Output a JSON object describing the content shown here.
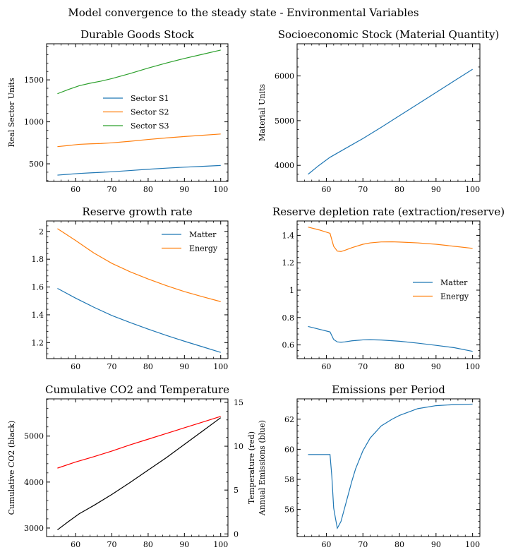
{
  "figure": {
    "title": "Model convergence to the steady state - Environmental Variables"
  },
  "chart_data": [
    {
      "type": "line",
      "title": "Durable Goods Stock",
      "xlabel": "",
      "ylabel": "Real Sector Units",
      "xlim": [
        52,
        102
      ],
      "ylim": [
        290,
        1930
      ],
      "xticks": [
        60,
        70,
        80,
        90,
        100
      ],
      "yticks": [
        500,
        1000,
        1500
      ],
      "grid": false,
      "legend": "center",
      "series": [
        {
          "name": "Sector S1",
          "color": "#1f77b4",
          "x": [
            55,
            58,
            61,
            64,
            67,
            70,
            75,
            80,
            85,
            90,
            95,
            100
          ],
          "y": [
            365,
            375,
            385,
            392,
            398,
            405,
            420,
            435,
            448,
            460,
            470,
            480
          ]
        },
        {
          "name": "Sector S2",
          "color": "#ff7f0e",
          "x": [
            55,
            58,
            61,
            64,
            67,
            70,
            75,
            80,
            85,
            90,
            95,
            100
          ],
          "y": [
            705,
            718,
            732,
            738,
            742,
            750,
            768,
            790,
            808,
            825,
            840,
            855
          ]
        },
        {
          "name": "Sector S3",
          "color": "#2ca02c",
          "x": [
            55,
            58,
            61,
            64,
            67,
            70,
            75,
            80,
            85,
            90,
            95,
            100
          ],
          "y": [
            1335,
            1385,
            1430,
            1460,
            1485,
            1515,
            1575,
            1640,
            1700,
            1755,
            1805,
            1855
          ]
        }
      ]
    },
    {
      "type": "line",
      "title": "Socioeconomic Stock (Material Quantity)",
      "xlabel": "",
      "ylabel": "Material Units",
      "xlim": [
        52,
        102
      ],
      "ylim": [
        3640,
        6720
      ],
      "xticks": [
        60,
        70,
        80,
        90,
        100
      ],
      "yticks": [
        4000,
        5000,
        6000
      ],
      "grid": false,
      "series": [
        {
          "name": "",
          "color": "#1f77b4",
          "x": [
            55,
            58,
            61,
            64,
            67,
            70,
            75,
            80,
            85,
            90,
            95,
            100
          ],
          "y": [
            3800,
            4000,
            4180,
            4320,
            4460,
            4600,
            4850,
            5110,
            5370,
            5630,
            5890,
            6150
          ]
        }
      ]
    },
    {
      "type": "line",
      "title": "Reserve growth rate",
      "xlabel": "",
      "ylabel": "",
      "xlim": [
        52,
        102
      ],
      "ylim": [
        1.085,
        2.075
      ],
      "xticks": [
        60,
        70,
        80,
        90,
        100
      ],
      "yticks": [
        1.2,
        1.4,
        1.6,
        1.8,
        2.0
      ],
      "grid": false,
      "legend": "top-right",
      "series": [
        {
          "name": "Matter",
          "color": "#1f77b4",
          "x": [
            55,
            60,
            65,
            70,
            75,
            80,
            85,
            90,
            95,
            100
          ],
          "y": [
            1.59,
            1.52,
            1.455,
            1.395,
            1.345,
            1.297,
            1.252,
            1.21,
            1.17,
            1.13
          ]
        },
        {
          "name": "Energy",
          "color": "#ff7f0e",
          "x": [
            55,
            60,
            65,
            70,
            75,
            80,
            85,
            90,
            95,
            100
          ],
          "y": [
            2.02,
            1.935,
            1.845,
            1.77,
            1.71,
            1.658,
            1.61,
            1.567,
            1.53,
            1.495
          ]
        }
      ]
    },
    {
      "type": "line",
      "title": "Reserve depletion rate (extraction/reserve)",
      "xlabel": "",
      "ylabel": "",
      "xlim": [
        52,
        102
      ],
      "ylim": [
        0.5,
        1.505
      ],
      "xticks": [
        60,
        70,
        80,
        90,
        100
      ],
      "yticks": [
        0.6,
        0.8,
        1.0,
        1.2,
        1.4
      ],
      "grid": false,
      "legend": "center-right",
      "series": [
        {
          "name": "Matter",
          "color": "#1f77b4",
          "x": [
            55,
            58,
            61,
            62,
            63,
            64,
            65,
            67,
            70,
            72,
            75,
            80,
            85,
            90,
            95,
            100
          ],
          "y": [
            0.735,
            0.715,
            0.695,
            0.64,
            0.622,
            0.62,
            0.622,
            0.63,
            0.637,
            0.638,
            0.636,
            0.627,
            0.613,
            0.597,
            0.58,
            0.553
          ]
        },
        {
          "name": "Energy",
          "color": "#ff7f0e",
          "x": [
            55,
            58,
            61,
            62,
            63,
            64,
            65,
            67,
            70,
            72,
            75,
            78,
            80,
            85,
            90,
            95,
            100
          ],
          "y": [
            1.46,
            1.44,
            1.415,
            1.32,
            1.285,
            1.282,
            1.29,
            1.31,
            1.335,
            1.345,
            1.352,
            1.353,
            1.351,
            1.345,
            1.335,
            1.32,
            1.305
          ]
        }
      ]
    },
    {
      "type": "line",
      "title": "Cumulative CO2 and Temperature",
      "xlabel": "",
      "ylabel": "Cumulative CO2 (black)",
      "ylabel_right": "Temperature (red)",
      "xlim": [
        52,
        102
      ],
      "ylim": [
        2815,
        5810
      ],
      "ylim_right": [
        -0.3,
        15.4
      ],
      "xticks": [
        60,
        70,
        80,
        90,
        100
      ],
      "yticks": [
        3000,
        4000,
        5000
      ],
      "yticks_right": [
        0,
        5,
        10,
        15
      ],
      "grid": false,
      "series": [
        {
          "name": "",
          "axis": "left",
          "color": "#000000",
          "x": [
            55,
            58,
            61,
            65,
            70,
            75,
            80,
            85,
            90,
            95,
            100
          ],
          "y": [
            2960,
            3140,
            3310,
            3490,
            3730,
            3990,
            4260,
            4530,
            4820,
            5110,
            5400
          ]
        },
        {
          "name": "",
          "axis": "right",
          "color": "#ff0000",
          "x": [
            55,
            60,
            65,
            70,
            75,
            80,
            85,
            90,
            95,
            100
          ],
          "y": [
            7.5,
            8.2,
            8.8,
            9.45,
            10.15,
            10.8,
            11.45,
            12.1,
            12.75,
            13.4
          ]
        }
      ]
    },
    {
      "type": "line",
      "title": "Emissions per Period",
      "xlabel": "",
      "ylabel": "Annual Emissions (blue)",
      "xlim": [
        52,
        102
      ],
      "ylim": [
        54.2,
        63.35
      ],
      "xticks": [
        60,
        70,
        80,
        90,
        100
      ],
      "yticks": [
        56,
        58,
        60,
        62
      ],
      "grid": false,
      "series": [
        {
          "name": "",
          "color": "#1f77b4",
          "x": [
            55,
            57,
            59,
            61,
            61.5,
            62,
            62.5,
            63,
            64,
            65,
            66,
            67,
            68,
            70,
            72,
            75,
            78,
            80,
            85,
            90,
            95,
            100
          ],
          "y": [
            59.65,
            59.65,
            59.65,
            59.65,
            58.2,
            56.1,
            55.4,
            54.75,
            55.2,
            56.1,
            57.0,
            57.9,
            58.7,
            59.9,
            60.75,
            61.55,
            62.0,
            62.25,
            62.7,
            62.9,
            62.97,
            63.0
          ]
        }
      ]
    }
  ]
}
